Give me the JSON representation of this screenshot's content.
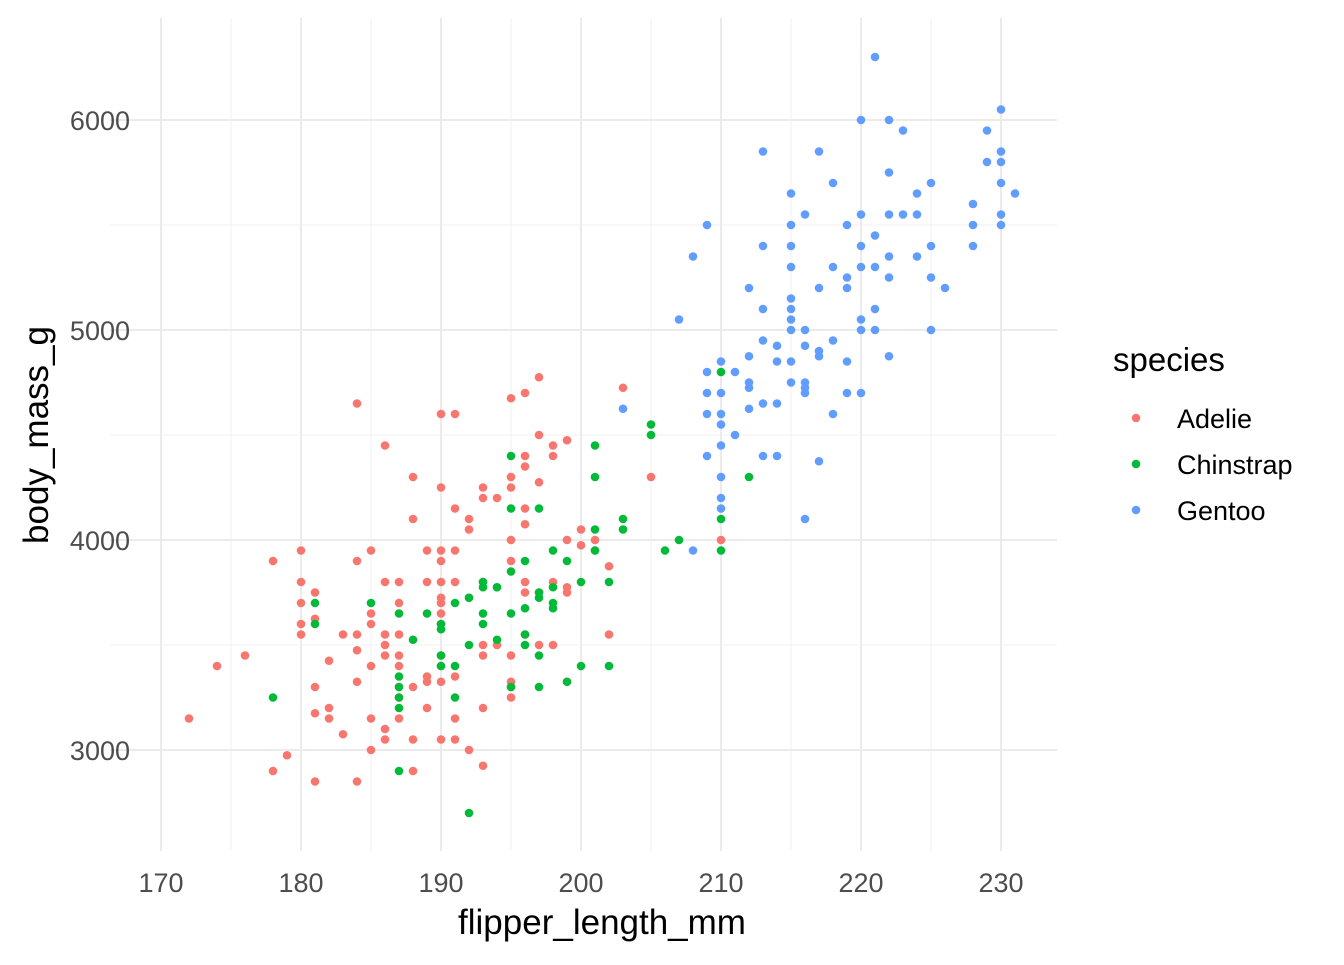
{
  "chart_data": {
    "type": "scatter",
    "xlabel": "flipper_length_mm",
    "ylabel": "body_mass_g",
    "xlim": [
      169.05,
      233.95
    ],
    "ylim": [
      2520,
      6480
    ],
    "xticks": [
      170,
      180,
      190,
      200,
      210,
      220,
      230
    ],
    "yticks": [
      3000,
      4000,
      5000,
      6000
    ],
    "xminor": [
      175,
      185,
      195,
      205,
      215,
      225
    ],
    "yminor": [
      3500,
      4500,
      5500
    ],
    "grid": true,
    "legend": {
      "title": "species",
      "placement": "right"
    },
    "series": [
      {
        "name": "Adelie",
        "color": "#F8766D",
        "points": [
          [
            172,
            3150
          ],
          [
            174,
            3400
          ],
          [
            176,
            3450
          ],
          [
            178,
            2900
          ],
          [
            178,
            3900
          ],
          [
            179,
            2975
          ],
          [
            180,
            3950
          ],
          [
            180,
            3800
          ],
          [
            180,
            3700
          ],
          [
            180,
            3600
          ],
          [
            180,
            3550
          ],
          [
            181,
            2850
          ],
          [
            181,
            3175
          ],
          [
            181,
            3300
          ],
          [
            181,
            3625
          ],
          [
            181,
            3750
          ],
          [
            182,
            3150
          ],
          [
            182,
            3200
          ],
          [
            182,
            3425
          ],
          [
            183,
            3075
          ],
          [
            183,
            3550
          ],
          [
            184,
            2850
          ],
          [
            184,
            3325
          ],
          [
            184,
            3475
          ],
          [
            184,
            3550
          ],
          [
            184,
            3900
          ],
          [
            184,
            4650
          ],
          [
            185,
            3000
          ],
          [
            185,
            3150
          ],
          [
            185,
            3400
          ],
          [
            185,
            3600
          ],
          [
            185,
            3650
          ],
          [
            185,
            3950
          ],
          [
            186,
            3100
          ],
          [
            186,
            3050
          ],
          [
            186,
            3450
          ],
          [
            186,
            3500
          ],
          [
            186,
            3550
          ],
          [
            186,
            3800
          ],
          [
            186,
            4450
          ],
          [
            187,
            3800
          ],
          [
            187,
            3700
          ],
          [
            187,
            3550
          ],
          [
            187,
            3450
          ],
          [
            187,
            3400
          ],
          [
            187,
            3300
          ],
          [
            187,
            3250
          ],
          [
            187,
            3150
          ],
          [
            188,
            2900
          ],
          [
            188,
            3050
          ],
          [
            188,
            3300
          ],
          [
            188,
            4100
          ],
          [
            188,
            4300
          ],
          [
            189,
            3200
          ],
          [
            189,
            3325
          ],
          [
            189,
            3350
          ],
          [
            189,
            3800
          ],
          [
            189,
            3950
          ],
          [
            190,
            3050
          ],
          [
            190,
            3325
          ],
          [
            190,
            3400
          ],
          [
            190,
            3450
          ],
          [
            190,
            3600
          ],
          [
            190,
            3650
          ],
          [
            190,
            3700
          ],
          [
            190,
            3725
          ],
          [
            190,
            3800
          ],
          [
            190,
            3900
          ],
          [
            190,
            3950
          ],
          [
            190,
            4250
          ],
          [
            190,
            4600
          ],
          [
            191,
            3050
          ],
          [
            191,
            3150
          ],
          [
            191,
            3350
          ],
          [
            191,
            3800
          ],
          [
            191,
            3950
          ],
          [
            191,
            4150
          ],
          [
            191,
            4600
          ],
          [
            192,
            3000
          ],
          [
            192,
            3725
          ],
          [
            192,
            4050
          ],
          [
            192,
            4100
          ],
          [
            193,
            2925
          ],
          [
            193,
            3200
          ],
          [
            193,
            3450
          ],
          [
            193,
            3500
          ],
          [
            193,
            3800
          ],
          [
            193,
            4200
          ],
          [
            193,
            4250
          ],
          [
            194,
            3775
          ],
          [
            194,
            4200
          ],
          [
            194,
            3500
          ],
          [
            195,
            3250
          ],
          [
            195,
            3300
          ],
          [
            195,
            3325
          ],
          [
            195,
            3450
          ],
          [
            195,
            3900
          ],
          [
            195,
            4000
          ],
          [
            195,
            4250
          ],
          [
            195,
            4300
          ],
          [
            195,
            4675
          ],
          [
            196,
            3550
          ],
          [
            196,
            3750
          ],
          [
            196,
            3800
          ],
          [
            196,
            4075
          ],
          [
            196,
            4150
          ],
          [
            196,
            4350
          ],
          [
            196,
            4400
          ],
          [
            196,
            4700
          ],
          [
            197,
            3500
          ],
          [
            197,
            3750
          ],
          [
            197,
            4275
          ],
          [
            197,
            4500
          ],
          [
            197,
            4775
          ],
          [
            198,
            3500
          ],
          [
            198,
            3800
          ],
          [
            198,
            4400
          ],
          [
            198,
            4450
          ],
          [
            199,
            3750
          ],
          [
            199,
            3775
          ],
          [
            199,
            4475
          ],
          [
            199,
            4000
          ],
          [
            200,
            3975
          ],
          [
            200,
            4050
          ],
          [
            201,
            4000
          ],
          [
            201,
            3950
          ],
          [
            202,
            3550
          ],
          [
            202,
            3875
          ],
          [
            203,
            4725
          ],
          [
            205,
            4300
          ],
          [
            210,
            4000
          ]
        ]
      },
      {
        "name": "Chinstrap",
        "color": "#00BA38",
        "points": [
          [
            178,
            3250
          ],
          [
            181,
            3600
          ],
          [
            181,
            3700
          ],
          [
            185,
            3700
          ],
          [
            187,
            2900
          ],
          [
            187,
            3200
          ],
          [
            187,
            3250
          ],
          [
            187,
            3300
          ],
          [
            187,
            3350
          ],
          [
            187,
            3650
          ],
          [
            188,
            3525
          ],
          [
            189,
            3650
          ],
          [
            190,
            3400
          ],
          [
            190,
            3450
          ],
          [
            190,
            3575
          ],
          [
            190,
            3600
          ],
          [
            191,
            3250
          ],
          [
            191,
            3400
          ],
          [
            191,
            3700
          ],
          [
            192,
            2700
          ],
          [
            192,
            3500
          ],
          [
            192,
            3725
          ],
          [
            193,
            3600
          ],
          [
            193,
            3650
          ],
          [
            193,
            3775
          ],
          [
            193,
            3800
          ],
          [
            194,
            3525
          ],
          [
            194,
            3775
          ],
          [
            195,
            3300
          ],
          [
            195,
            3650
          ],
          [
            195,
            3850
          ],
          [
            195,
            4150
          ],
          [
            195,
            4400
          ],
          [
            196,
            3500
          ],
          [
            196,
            3550
          ],
          [
            196,
            3675
          ],
          [
            196,
            3900
          ],
          [
            197,
            3300
          ],
          [
            197,
            3450
          ],
          [
            197,
            3725
          ],
          [
            197,
            3750
          ],
          [
            197,
            4150
          ],
          [
            198,
            3675
          ],
          [
            198,
            3700
          ],
          [
            198,
            3775
          ],
          [
            198,
            3950
          ],
          [
            199,
            3325
          ],
          [
            199,
            3900
          ],
          [
            200,
            3400
          ],
          [
            200,
            3800
          ],
          [
            201,
            3950
          ],
          [
            201,
            4050
          ],
          [
            201,
            4300
          ],
          [
            201,
            4450
          ],
          [
            202,
            3400
          ],
          [
            202,
            3800
          ],
          [
            203,
            4050
          ],
          [
            203,
            4100
          ],
          [
            205,
            4500
          ],
          [
            205,
            4550
          ],
          [
            206,
            3950
          ],
          [
            207,
            4000
          ],
          [
            210,
            3950
          ],
          [
            210,
            4100
          ],
          [
            210,
            4800
          ],
          [
            212,
            4300
          ]
        ]
      },
      {
        "name": "Gentoo",
        "color": "#619CFF",
        "points": [
          [
            203,
            4625
          ],
          [
            207,
            5050
          ],
          [
            208,
            3950
          ],
          [
            208,
            5350
          ],
          [
            209,
            4400
          ],
          [
            209,
            4600
          ],
          [
            209,
            4700
          ],
          [
            209,
            4800
          ],
          [
            209,
            5500
          ],
          [
            210,
            4150
          ],
          [
            210,
            4200
          ],
          [
            210,
            4300
          ],
          [
            210,
            4450
          ],
          [
            210,
            4550
          ],
          [
            210,
            4600
          ],
          [
            210,
            4700
          ],
          [
            210,
            4850
          ],
          [
            211,
            4500
          ],
          [
            211,
            4800
          ],
          [
            212,
            4625
          ],
          [
            212,
            4725
          ],
          [
            212,
            4750
          ],
          [
            212,
            4875
          ],
          [
            212,
            5200
          ],
          [
            213,
            4400
          ],
          [
            213,
            4650
          ],
          [
            213,
            4950
          ],
          [
            213,
            5100
          ],
          [
            213,
            5400
          ],
          [
            213,
            5850
          ],
          [
            214,
            4400
          ],
          [
            214,
            4650
          ],
          [
            214,
            4925
          ],
          [
            214,
            4850
          ],
          [
            215,
            4750
          ],
          [
            215,
            4850
          ],
          [
            215,
            5000
          ],
          [
            215,
            5050
          ],
          [
            215,
            5100
          ],
          [
            215,
            5150
          ],
          [
            215,
            5300
          ],
          [
            215,
            5400
          ],
          [
            215,
            5500
          ],
          [
            215,
            5650
          ],
          [
            216,
            4100
          ],
          [
            216,
            4700
          ],
          [
            216,
            4725
          ],
          [
            216,
            4750
          ],
          [
            216,
            4925
          ],
          [
            216,
            5000
          ],
          [
            216,
            5550
          ],
          [
            217,
            4375
          ],
          [
            217,
            4875
          ],
          [
            217,
            4900
          ],
          [
            217,
            5200
          ],
          [
            217,
            5850
          ],
          [
            218,
            4600
          ],
          [
            218,
            4950
          ],
          [
            218,
            5300
          ],
          [
            218,
            5700
          ],
          [
            219,
            4700
          ],
          [
            219,
            4850
          ],
          [
            219,
            5200
          ],
          [
            219,
            5250
          ],
          [
            219,
            5500
          ],
          [
            220,
            4700
          ],
          [
            220,
            5000
          ],
          [
            220,
            5050
          ],
          [
            220,
            5300
          ],
          [
            220,
            5400
          ],
          [
            220,
            5550
          ],
          [
            220,
            6000
          ],
          [
            221,
            5000
          ],
          [
            221,
            5100
          ],
          [
            221,
            5300
          ],
          [
            221,
            5450
          ],
          [
            221,
            6300
          ],
          [
            222,
            4875
          ],
          [
            222,
            5250
          ],
          [
            222,
            5350
          ],
          [
            222,
            5550
          ],
          [
            222,
            5750
          ],
          [
            222,
            6000
          ],
          [
            223,
            5550
          ],
          [
            223,
            5950
          ],
          [
            224,
            5350
          ],
          [
            224,
            5550
          ],
          [
            224,
            5650
          ],
          [
            225,
            5000
          ],
          [
            225,
            5250
          ],
          [
            225,
            5400
          ],
          [
            225,
            5700
          ],
          [
            226,
            5200
          ],
          [
            228,
            5400
          ],
          [
            228,
            5500
          ],
          [
            228,
            5600
          ],
          [
            229,
            5800
          ],
          [
            229,
            5950
          ],
          [
            230,
            5500
          ],
          [
            230,
            5550
          ],
          [
            230,
            5700
          ],
          [
            230,
            5800
          ],
          [
            230,
            5850
          ],
          [
            230,
            6050
          ],
          [
            231,
            5650
          ]
        ]
      }
    ]
  }
}
